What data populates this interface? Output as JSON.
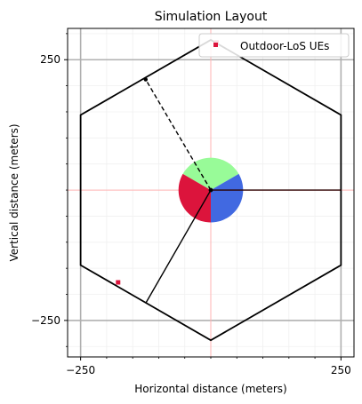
{
  "chart_data": {
    "type": "scatter",
    "title": "Simulation Layout",
    "xlabel": "Horizontal distance (meters)",
    "ylabel": "Vertical distance (meters)",
    "xlim": [
      -275,
      275
    ],
    "ylim": [
      -320,
      310
    ],
    "x_ticks": [
      {
        "value": -250,
        "label": "−250"
      },
      {
        "value": 250,
        "label": "250"
      }
    ],
    "y_ticks": [
      {
        "value": 250,
        "label": "250"
      },
      {
        "value": -250,
        "label": "−250"
      }
    ],
    "grid": {
      "major": true,
      "minor": true
    },
    "legend": {
      "position": "top-right",
      "entries": [
        "Outdoor-LoS UEs"
      ]
    },
    "colors": {
      "hexagon": "#000000",
      "crosshair": "#ffb3b3",
      "grid_major": "#b0b0b0",
      "grid_minor": "#f0f0f0",
      "sector_green": "#98fb98",
      "sector_red": "#dc143c",
      "sector_blue": "#4169e1",
      "marker": "#dc143c",
      "ray_to_right": "#8b0000"
    },
    "hexagon": {
      "vertices": [
        [
          0,
          288
        ],
        [
          250,
          144
        ],
        [
          250,
          -144
        ],
        [
          0,
          -288
        ],
        [
          -250,
          -144
        ],
        [
          -250,
          144
        ]
      ]
    },
    "base_station": {
      "x": 0,
      "y": 0
    },
    "sectors_radius_m": 62,
    "sectors": [
      {
        "name": "sector-green",
        "start_deg": 30,
        "end_deg": 150,
        "color": "#98fb98"
      },
      {
        "name": "sector-red",
        "start_deg": 150,
        "end_deg": 270,
        "color": "#dc143c"
      },
      {
        "name": "sector-blue",
        "start_deg": 270,
        "end_deg": 390,
        "color": "#4169e1"
      }
    ],
    "boundary_lines": [
      {
        "name": "boundary-line-right",
        "to": [
          250,
          0
        ],
        "style": "solid",
        "color": "#2b0000"
      },
      {
        "name": "boundary-line-upper-left",
        "to": [
          -125,
          212
        ],
        "style": "dashed",
        "color": "#000000"
      },
      {
        "name": "boundary-line-lower-left",
        "to": [
          -125,
          -217
        ],
        "style": "solid",
        "color": "#000000"
      }
    ],
    "points": [
      {
        "name": "ue-point-lower-left",
        "x": -178,
        "y": -177
      },
      {
        "name": "ue-point-top",
        "x": 11,
        "y": 283
      }
    ],
    "dashed_line_end_marker": {
      "x": -125,
      "y": 212
    }
  }
}
